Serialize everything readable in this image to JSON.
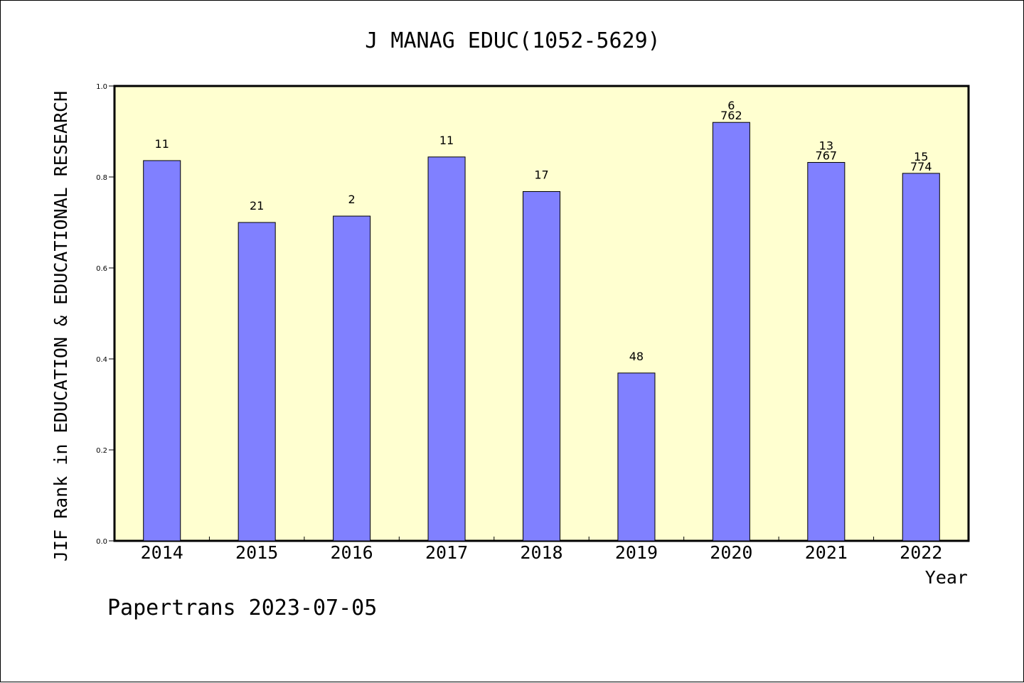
{
  "chart_data": {
    "type": "bar",
    "title": "J MANAG EDUC(1052-5629)",
    "xlabel": "Year",
    "ylabel": "JIF Rank in EDUCATION & EDUCATIONAL RESEARCH",
    "categories": [
      "2014",
      "2015",
      "2016",
      "2017",
      "2018",
      "2019",
      "2020",
      "2021",
      "2022"
    ],
    "values": [
      0.836,
      0.7,
      0.714,
      0.844,
      0.768,
      0.369,
      0.92,
      0.832,
      0.808
    ],
    "bar_labels": [
      [
        "11"
      ],
      [
        "21"
      ],
      [
        "2"
      ],
      [
        "11"
      ],
      [
        "17"
      ],
      [
        "48"
      ],
      [
        "6",
        "762"
      ],
      [
        "13",
        "767"
      ],
      [
        "15",
        "774"
      ]
    ],
    "ylim": [
      0,
      1.0
    ],
    "yticks": [
      "0.0",
      "0.2",
      "0.4",
      "0.6",
      "0.8",
      "1.0"
    ],
    "grid": false,
    "colors": {
      "bar": "#8080ff",
      "plot_bg": "#ffffd0"
    }
  },
  "footer": "Papertrans 2023-07-05"
}
